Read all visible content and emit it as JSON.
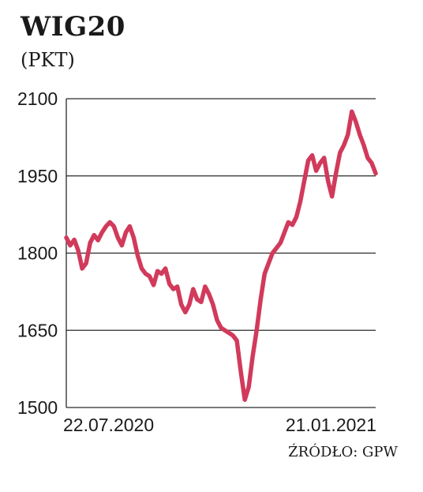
{
  "chart_data": {
    "type": "line",
    "title": "WIG20",
    "subtitle": "(PKT)",
    "source": "ŹRÓDŁO: GPW",
    "ylim": [
      1500,
      2100
    ],
    "yticks": [
      1500,
      1650,
      1800,
      1950,
      2100
    ],
    "ytick_labels": [
      "1500",
      "1650",
      "1800",
      "1950",
      "2100"
    ],
    "x_labels": [
      "22.07.2020",
      "21.01.2021"
    ],
    "grid": true,
    "color": "#d13a5b",
    "series": [
      {
        "values": [
          1830,
          1815,
          1826,
          1805,
          1770,
          1780,
          1820,
          1835,
          1825,
          1840,
          1852,
          1860,
          1852,
          1830,
          1815,
          1840,
          1852,
          1830,
          1795,
          1770,
          1760,
          1755,
          1738,
          1765,
          1760,
          1770,
          1740,
          1730,
          1735,
          1700,
          1685,
          1700,
          1730,
          1710,
          1705,
          1735,
          1720,
          1700,
          1670,
          1655,
          1650,
          1645,
          1640,
          1630,
          1570,
          1515,
          1540,
          1600,
          1650,
          1710,
          1760,
          1780,
          1800,
          1810,
          1820,
          1840,
          1860,
          1855,
          1870,
          1900,
          1940,
          1980,
          1990,
          1960,
          1975,
          1985,
          1940,
          1910,
          1955,
          1995,
          2010,
          2030,
          2075,
          2055,
          2030,
          2010,
          1985,
          1975,
          1955
        ]
      }
    ]
  }
}
